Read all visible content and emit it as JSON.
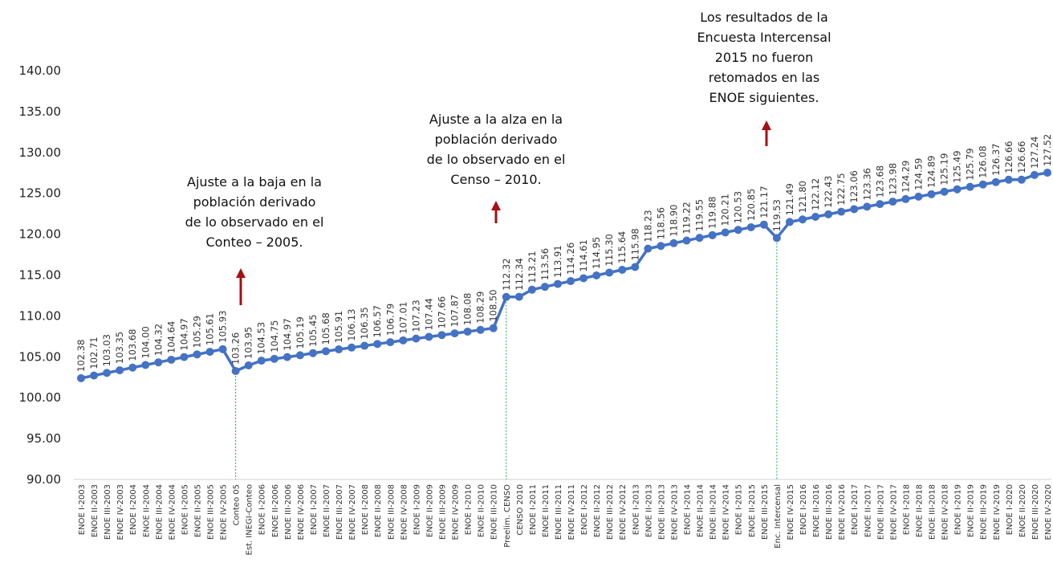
{
  "chart_data": {
    "type": "line",
    "categories": [
      "ENOE I-2003",
      "ENOE II-2003",
      "ENOE III-2003",
      "ENOE IV-2003",
      "ENOE I-2004",
      "ENOE II-2004",
      "ENOE III-2004",
      "ENOE IV-2004",
      "ENOE I-2005",
      "ENOE II-2005",
      "ENOE III-2005",
      "ENOE IV-2005",
      "Conteo 05",
      "Est. INEGI-Conteo",
      "ENOE I-2006",
      "ENOE II-2006",
      "ENOE III-2006",
      "ENOE IV-2006",
      "ENOE I-2007",
      "ENOE II-2007",
      "ENOE III-2007",
      "ENOE IV-2007",
      "ENOE I-2008",
      "ENOE II-2008",
      "ENOE III-2008",
      "ENOE IV-2008",
      "ENOE I-2009",
      "ENOE II-2009",
      "ENOE III-2009",
      "ENOE IV-2009",
      "ENOE I-2010",
      "ENOE II-2010",
      "ENOE III-2010",
      "Preelim. CENSO",
      "CENSO 2010",
      "ENOE I-2011",
      "ENOE II-2011",
      "ENOE III-2011",
      "ENOE IV-2011",
      "ENOE I-2012",
      "ENOE II-2012",
      "ENOE III-2012",
      "ENOE IV-2012",
      "ENOE I-2013",
      "ENOE II-2013",
      "ENOE III-2013",
      "ENOE IV-2013",
      "ENOE I-2014",
      "ENOE II-2014",
      "ENOE III-2014",
      "ENOE IV-2014",
      "ENOE I-2015",
      "ENOE II-2015",
      "ENOE III-2015",
      "Enc. Intercensal",
      "ENOE IV-2015",
      "ENOE I-2016",
      "ENOE II-2016",
      "ENOE III-2016",
      "ENOE IV-2016",
      "ENOE I-2017",
      "ENOE II-2017",
      "ENOE III-2017",
      "ENOE IV-2017",
      "ENOE I-2018",
      "ENOE II-2018",
      "ENOE III-2018",
      "ENOE IV-2018",
      "ENOE I-2019",
      "ENOE II-2019",
      "ENOE III-2019",
      "ENOE IV-2019",
      "ENOE I-2020",
      "ENOE II-2020",
      "ENOE III-2020",
      "ENOE IV-2020"
    ],
    "values": [
      102.38,
      102.71,
      103.03,
      103.35,
      103.68,
      104.0,
      104.32,
      104.64,
      104.97,
      105.29,
      105.61,
      105.93,
      103.26,
      103.95,
      104.53,
      104.75,
      104.97,
      105.19,
      105.45,
      105.68,
      105.91,
      106.13,
      106.35,
      106.57,
      106.79,
      107.01,
      107.23,
      107.44,
      107.66,
      107.87,
      108.08,
      108.29,
      108.5,
      112.32,
      112.34,
      113.21,
      113.56,
      113.91,
      114.26,
      114.61,
      114.95,
      115.3,
      115.64,
      115.98,
      118.23,
      118.56,
      118.9,
      119.22,
      119.55,
      119.88,
      120.21,
      120.53,
      120.85,
      121.17,
      119.53,
      121.49,
      121.8,
      122.12,
      122.43,
      122.75,
      123.06,
      123.36,
      123.68,
      123.98,
      124.29,
      124.59,
      124.89,
      125.19,
      125.49,
      125.79,
      126.08,
      126.37,
      126.66,
      126.66,
      127.24,
      127.52
    ],
    "value_labels": [
      "102.38",
      "102.71",
      "103.03",
      "103.35",
      "103.68",
      "104.00",
      "104.32",
      "104.64",
      "104.97",
      "105.29",
      "105.61",
      "105.93",
      "103.26",
      "103.95",
      "104.53",
      "104.75",
      "104.97",
      "105.19",
      "105.45",
      "105.68",
      "105.91",
      "106.13",
      "106.35",
      "106.57",
      "106.79",
      "107.01",
      "107.23",
      "107.44",
      "107.66",
      "107.87",
      "108.08",
      "108.29",
      "108.50",
      "112.32",
      "112.34",
      "113.21",
      "113.56",
      "113.91",
      "114.26",
      "114.61",
      "114.95",
      "115.30",
      "115.64",
      "115.98",
      "118.23",
      "118.56",
      "118.90",
      "119.22",
      "119.55",
      "119.88",
      "120.21",
      "120.53",
      "120.85",
      "121.17",
      "119.53",
      "121.49",
      "121.80",
      "122.12",
      "122.43",
      "122.75",
      "123.06",
      "123.36",
      "123.68",
      "123.98",
      "124.29",
      "124.59",
      "124.89",
      "125.19",
      "125.49",
      "125.79",
      "126.08",
      "126.37",
      "126.66",
      "126.66",
      "127.24",
      "127.52"
    ],
    "color": "#4472c4",
    "ylim": [
      90,
      140
    ],
    "yticks": [
      {
        "value": 90,
        "label": "90.00"
      },
      {
        "value": 95,
        "label": "95.00"
      },
      {
        "value": 100,
        "label": "100.00"
      },
      {
        "value": 105,
        "label": "105.00"
      },
      {
        "value": 110,
        "label": "110.00"
      },
      {
        "value": 115,
        "label": "115.00"
      },
      {
        "value": 120,
        "label": "120.00"
      },
      {
        "value": 125,
        "label": "125.00"
      },
      {
        "value": 130,
        "label": "130.00"
      },
      {
        "value": 135,
        "label": "135.00"
      },
      {
        "value": 140,
        "label": "140.00"
      }
    ],
    "annotations": [
      [
        "Ajuste a la baja en la",
        "población derivado",
        "de lo observado en el",
        "Conteo – 2005."
      ],
      [
        "Ajuste a la alza en la",
        "población derivado",
        "de lo observado en el",
        "Censo – 2010."
      ],
      [
        "Los resultados de la",
        "Encuesta Intercensal",
        "2015 no fueron",
        "retomados en las",
        "ENOE siguientes."
      ]
    ]
  }
}
